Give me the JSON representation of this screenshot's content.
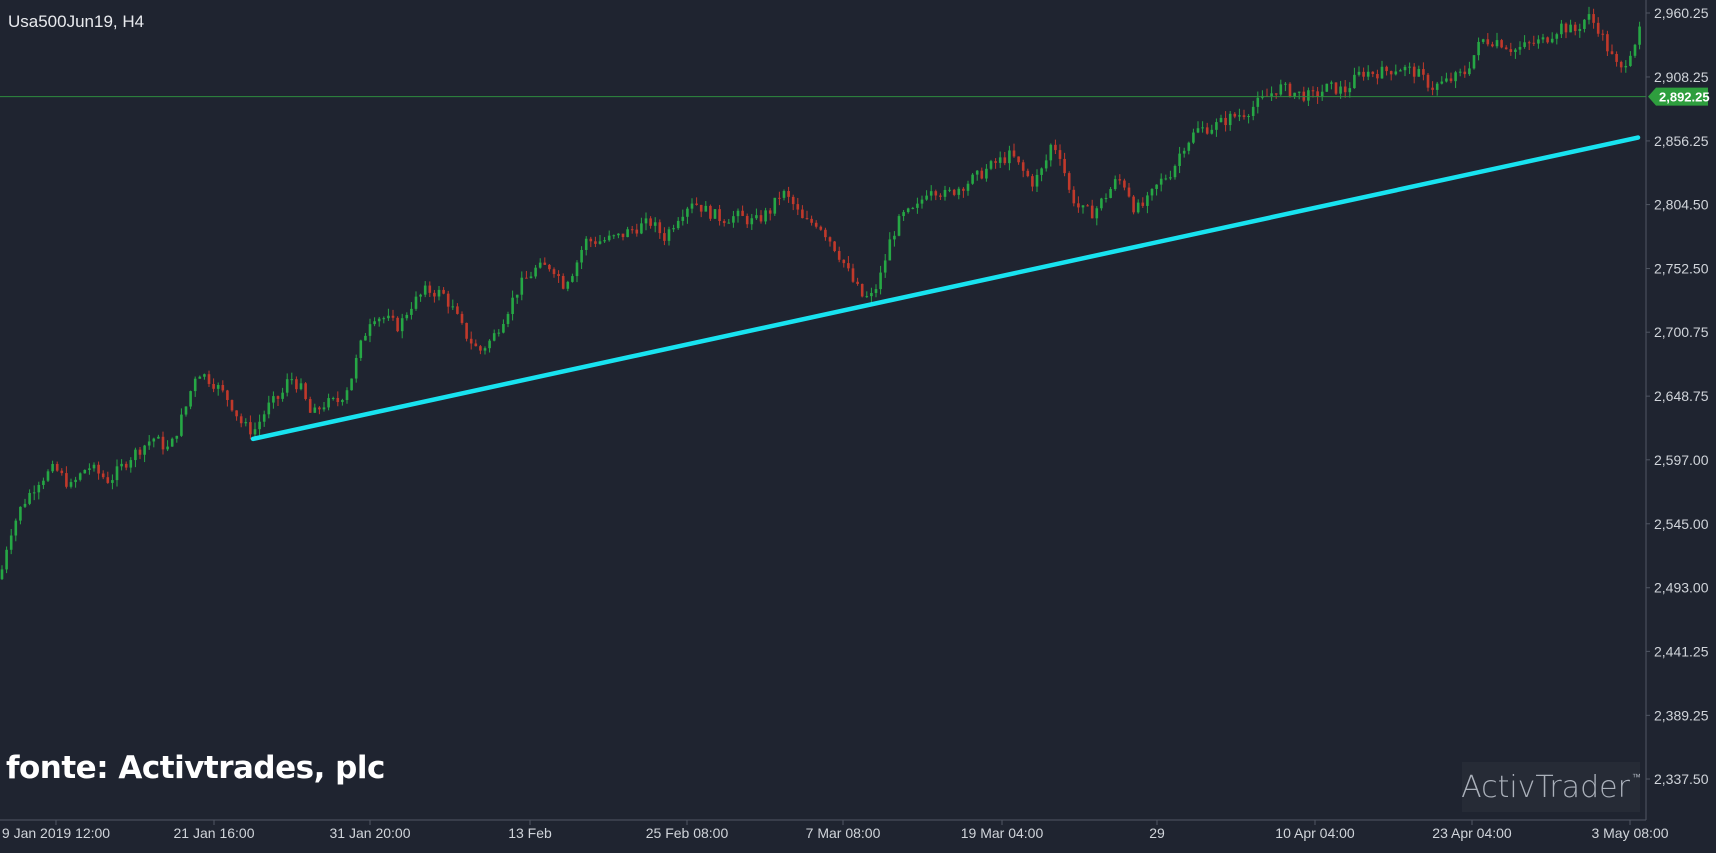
{
  "header": {
    "symbol": "Usa500Jun19, H4"
  },
  "source_text": "fonte: Activtrades, plc",
  "logo": {
    "text": "ActivTrader",
    "tm": "™"
  },
  "colors": {
    "background": "#1f2430",
    "up": "#26a745",
    "down": "#c0392b",
    "trendline": "#18e3f0",
    "price_line": "#2e8b3e",
    "price_badge": "#2e9e3e",
    "axis_text": "#d0d4da"
  },
  "chart_data": {
    "type": "candlestick",
    "instrument": "Usa500Jun19",
    "timeframe": "H4",
    "y_ticks": [
      "2,960.25",
      "2,908.25",
      "2,856.25",
      "2,804.50",
      "2,752.50",
      "2,700.75",
      "2,648.75",
      "2,597.00",
      "2,545.00",
      "2,493.00",
      "2,441.25",
      "2,389.25",
      "2,337.50"
    ],
    "y_tick_values": [
      2960.25,
      2908.25,
      2856.25,
      2804.5,
      2752.5,
      2700.75,
      2648.75,
      2597.0,
      2545.0,
      2493.0,
      2441.25,
      2389.25,
      2337.5
    ],
    "ylim": [
      2312,
      2970
    ],
    "x_ticks": [
      "9 Jan 2019 12:00",
      "21 Jan 16:00",
      "31 Jan 20:00",
      "13 Feb",
      "25 Feb 08:00",
      "7 Mar 08:00",
      "19 Mar 04:00",
      "29",
      "10 Apr 04:00",
      "23 Apr 04:00",
      "3 May 08:00"
    ],
    "current_price": {
      "label": "2,892.25",
      "value": 2892.25
    },
    "close_path": [
      [
        0,
        2500
      ],
      [
        8,
        2535
      ],
      [
        20,
        2560
      ],
      [
        35,
        2580
      ],
      [
        50,
        2590
      ],
      [
        65,
        2575
      ],
      [
        80,
        2592
      ],
      [
        100,
        2580
      ],
      [
        120,
        2600
      ],
      [
        140,
        2615
      ],
      [
        155,
        2605
      ],
      [
        170,
        2640
      ],
      [
        180,
        2670
      ],
      [
        195,
        2660
      ],
      [
        210,
        2645
      ],
      [
        222,
        2625
      ],
      [
        232,
        2620
      ],
      [
        245,
        2640
      ],
      [
        258,
        2650
      ],
      [
        265,
        2665
      ],
      [
        275,
        2655
      ],
      [
        285,
        2632
      ],
      [
        295,
        2642
      ],
      [
        310,
        2645
      ],
      [
        320,
        2660
      ],
      [
        330,
        2690
      ],
      [
        340,
        2715
      ],
      [
        352,
        2712
      ],
      [
        365,
        2705
      ],
      [
        375,
        2722
      ],
      [
        390,
        2735
      ],
      [
        405,
        2732
      ],
      [
        415,
        2718
      ],
      [
        425,
        2700
      ],
      [
        438,
        2685
      ],
      [
        450,
        2695
      ],
      [
        462,
        2715
      ],
      [
        475,
        2738
      ],
      [
        490,
        2752
      ],
      [
        505,
        2755
      ],
      [
        515,
        2740
      ],
      [
        525,
        2752
      ],
      [
        535,
        2775
      ],
      [
        550,
        2775
      ],
      [
        565,
        2778
      ],
      [
        580,
        2785
      ],
      [
        595,
        2790
      ],
      [
        608,
        2778
      ],
      [
        620,
        2795
      ],
      [
        633,
        2808
      ],
      [
        645,
        2800
      ],
      [
        660,
        2793
      ],
      [
        675,
        2795
      ],
      [
        690,
        2790
      ],
      [
        705,
        2800
      ],
      [
        715,
        2815
      ],
      [
        725,
        2805
      ],
      [
        735,
        2790
      ],
      [
        748,
        2790
      ],
      [
        760,
        2775
      ],
      [
        770,
        2760
      ],
      [
        780,
        2742
      ],
      [
        790,
        2728
      ],
      [
        798,
        2730
      ],
      [
        806,
        2748
      ],
      [
        815,
        2778
      ],
      [
        825,
        2795
      ],
      [
        838,
        2800
      ],
      [
        850,
        2820
      ],
      [
        865,
        2812
      ],
      [
        880,
        2820
      ],
      [
        895,
        2828
      ],
      [
        910,
        2838
      ],
      [
        925,
        2845
      ],
      [
        935,
        2832
      ],
      [
        945,
        2822
      ],
      [
        955,
        2835
      ],
      [
        962,
        2855
      ],
      [
        970,
        2845
      ],
      [
        978,
        2815
      ],
      [
        988,
        2800
      ],
      [
        1000,
        2798
      ],
      [
        1010,
        2810
      ],
      [
        1022,
        2825
      ],
      [
        1030,
        2820
      ],
      [
        1038,
        2800
      ],
      [
        1048,
        2805
      ],
      [
        1060,
        2822
      ],
      [
        1072,
        2832
      ],
      [
        1082,
        2852
      ],
      [
        1095,
        2865
      ],
      [
        1110,
        2868
      ],
      [
        1125,
        2875
      ],
      [
        1140,
        2880
      ],
      [
        1155,
        2890
      ],
      [
        1170,
        2900
      ],
      [
        1185,
        2895
      ],
      [
        1200,
        2892
      ],
      [
        1215,
        2900
      ],
      [
        1230,
        2897
      ],
      [
        1245,
        2912
      ],
      [
        1262,
        2912
      ],
      [
        1280,
        2916
      ],
      [
        1295,
        2912
      ],
      [
        1310,
        2900
      ],
      [
        1325,
        2905
      ],
      [
        1340,
        2912
      ],
      [
        1355,
        2938
      ],
      [
        1370,
        2938
      ],
      [
        1385,
        2930
      ],
      [
        1400,
        2935
      ],
      [
        1412,
        2938
      ],
      [
        1428,
        2950
      ],
      [
        1440,
        2945
      ],
      [
        1452,
        2958
      ],
      [
        1462,
        2948
      ],
      [
        1472,
        2928
      ],
      [
        1482,
        2912
      ],
      [
        1490,
        2928
      ],
      [
        1500,
        2945
      ]
    ],
    "trendline": {
      "from": {
        "x_label": "21 Jan 16:00",
        "y": 2614
      },
      "to": {
        "x_label": "3 May 08:00",
        "y": 2859
      }
    }
  }
}
